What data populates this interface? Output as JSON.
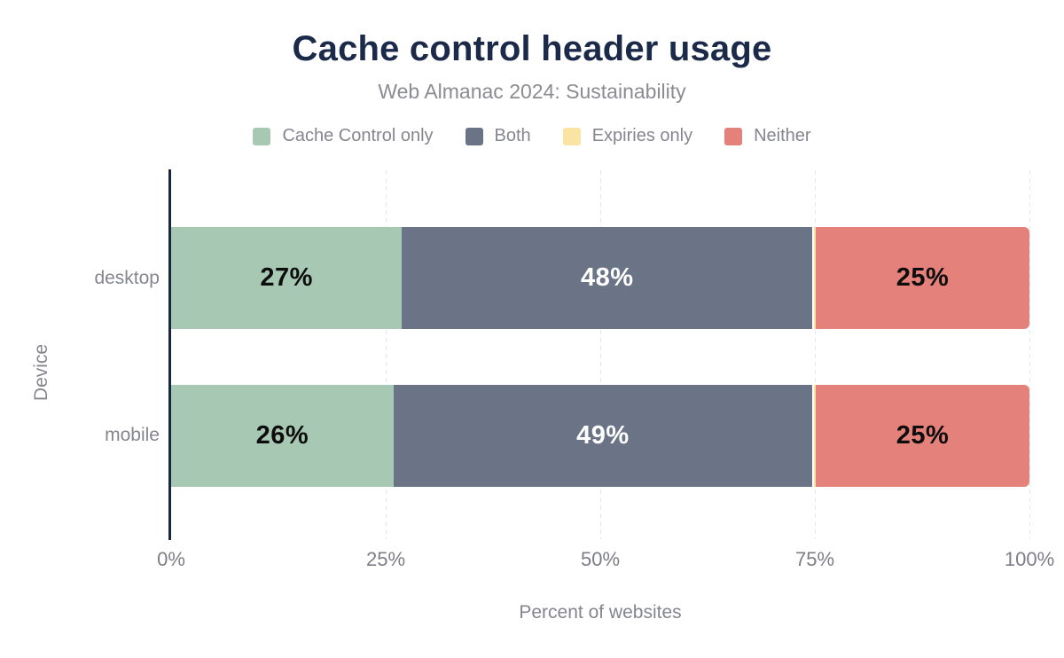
{
  "chart_data": {
    "type": "bar",
    "orientation": "horizontal-stacked",
    "title": "Cache control header usage",
    "subtitle": "Web Almanac 2024: Sustainability",
    "xlabel": "Percent of websites",
    "ylabel": "Device",
    "categories": [
      "desktop",
      "mobile"
    ],
    "series": [
      {
        "name": "Cache Control only",
        "color": "#a7c9b4",
        "label_color": "#0d0d0d",
        "values": [
          27,
          26
        ],
        "labels": [
          "27%",
          "26%"
        ]
      },
      {
        "name": "Both",
        "color": "#6b7487",
        "label_color": "#ffffff",
        "values": [
          48,
          49
        ],
        "labels": [
          "48%",
          "49%"
        ]
      },
      {
        "name": "Expiries only",
        "color": "#fbe3a1",
        "label_color": "#0d0d0d",
        "values": [
          0.4,
          0.4
        ],
        "labels": [
          "",
          ""
        ]
      },
      {
        "name": "Neither",
        "color": "#e4817a",
        "label_color": "#0d0d0d",
        "values": [
          25,
          25
        ],
        "labels": [
          "25%",
          "25%"
        ]
      }
    ],
    "xticks": [
      "0%",
      "25%",
      "50%",
      "75%",
      "100%"
    ],
    "xtick_values": [
      0,
      25,
      50,
      75,
      100
    ],
    "xlim": [
      0,
      100
    ],
    "grid": "vertical-dashed",
    "legend_position": "top",
    "palette": {
      "title_color": "#1c2a49",
      "axis_line_color": "#1b2742",
      "gridline_color": "#e7e7e9",
      "text_gray": "#85868e"
    }
  }
}
